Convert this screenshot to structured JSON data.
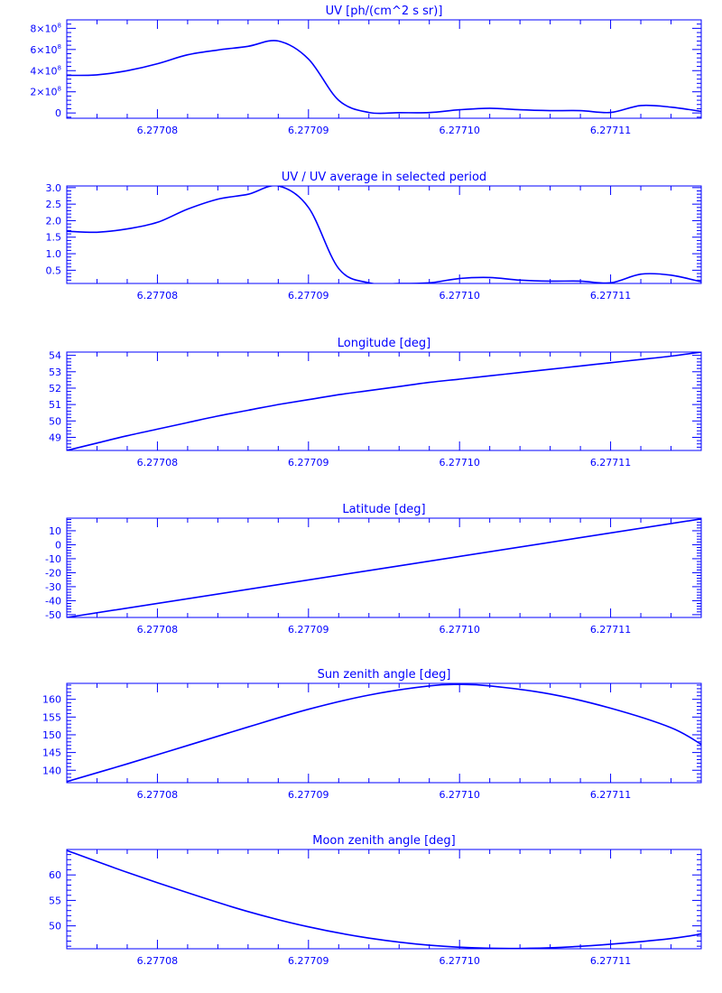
{
  "colors": {
    "foreground": "#0000ff",
    "background": "#ffffff"
  },
  "chart_data": [
    {
      "type": "line",
      "title": "UV [ph/(cm^2 s sr)]",
      "xlabel": "",
      "ylabel": "",
      "xlim": [
        6.277074,
        6.277116
      ],
      "ylim": [
        -50000000,
        880000000
      ],
      "xticks": [
        6.27708,
        6.27709,
        6.2771,
        6.27711
      ],
      "xtick_labels": [
        "6.27708",
        "6.27709",
        "6.27710",
        "6.27711"
      ],
      "yticks": [
        0,
        200000000,
        400000000,
        600000000,
        800000000
      ],
      "ytick_labels": [
        {
          "base": "0",
          "exp": ""
        },
        {
          "base": "2×10",
          "exp": "8"
        },
        {
          "base": "4×10",
          "exp": "8"
        },
        {
          "base": "6×10",
          "exp": "8"
        },
        {
          "base": "8×10",
          "exp": "8"
        }
      ],
      "y_minor": 5,
      "grid": false,
      "x": [
        6.277074,
        6.277076,
        6.277078,
        6.27708,
        6.277082,
        6.277084,
        6.277086,
        6.277088,
        6.27709,
        6.277092,
        6.277094,
        6.277096,
        6.277098,
        6.2771,
        6.277102,
        6.277104,
        6.277106,
        6.277108,
        6.27711,
        6.277112,
        6.277114,
        6.277116
      ],
      "y": [
        355000000,
        360000000,
        400000000,
        465000000,
        550000000,
        595000000,
        630000000,
        680000000,
        510000000,
        120000000,
        5000000,
        3000000,
        4000000,
        30000000,
        45000000,
        30000000,
        22000000,
        22000000,
        5000000,
        70000000,
        55000000,
        15000000
      ]
    },
    {
      "type": "line",
      "title": "UV / UV average in selected period",
      "xlabel": "",
      "ylabel": "",
      "xlim": [
        6.277074,
        6.277116
      ],
      "ylim": [
        0.1,
        3.05
      ],
      "xticks": [
        6.27708,
        6.27709,
        6.2771,
        6.27711
      ],
      "xtick_labels": [
        "6.27708",
        "6.27709",
        "6.27710",
        "6.27711"
      ],
      "yticks": [
        0.5,
        1.0,
        1.5,
        2.0,
        2.5,
        3.0
      ],
      "ytick_labels": [
        "0.5",
        "1.0",
        "1.5",
        "2.0",
        "2.5",
        "3.0"
      ],
      "y_minor": 5,
      "grid": false,
      "x": [
        6.277074,
        6.277076,
        6.277078,
        6.27708,
        6.277082,
        6.277084,
        6.277086,
        6.277088,
        6.27709,
        6.277092,
        6.277094,
        6.277096,
        6.277098,
        6.2771,
        6.277102,
        6.277104,
        6.277106,
        6.277108,
        6.27711,
        6.277112,
        6.277114,
        6.277116
      ],
      "y": [
        1.68,
        1.65,
        1.75,
        1.95,
        2.35,
        2.65,
        2.8,
        3.05,
        2.4,
        0.55,
        0.12,
        0.1,
        0.12,
        0.25,
        0.28,
        0.2,
        0.17,
        0.17,
        0.12,
        0.38,
        0.35,
        0.15
      ]
    },
    {
      "type": "line",
      "title": "Longitude [deg]",
      "xlabel": "",
      "ylabel": "",
      "xlim": [
        6.277074,
        6.277116
      ],
      "ylim": [
        48.2,
        54.2
      ],
      "xticks": [
        6.27708,
        6.27709,
        6.2771,
        6.27711
      ],
      "xtick_labels": [
        "6.27708",
        "6.27709",
        "6.27710",
        "6.27711"
      ],
      "yticks": [
        49,
        50,
        51,
        52,
        53,
        54
      ],
      "ytick_labels": [
        "49",
        "50",
        "51",
        "52",
        "53",
        "54"
      ],
      "y_minor": 5,
      "grid": false,
      "x": [
        6.277074,
        6.277076,
        6.277078,
        6.27708,
        6.277082,
        6.277084,
        6.277086,
        6.277088,
        6.27709,
        6.277092,
        6.277094,
        6.277096,
        6.277098,
        6.2771,
        6.277102,
        6.277104,
        6.277106,
        6.277108,
        6.27711,
        6.277112,
        6.277114,
        6.277116
      ],
      "y": [
        48.2,
        48.65,
        49.1,
        49.5,
        49.9,
        50.3,
        50.65,
        51.0,
        51.3,
        51.6,
        51.85,
        52.1,
        52.35,
        52.55,
        52.75,
        52.95,
        53.15,
        53.35,
        53.55,
        53.75,
        53.95,
        54.2
      ]
    },
    {
      "type": "line",
      "title": "Latitude [deg]",
      "xlabel": "",
      "ylabel": "",
      "xlim": [
        6.277074,
        6.277116
      ],
      "ylim": [
        -52,
        19
      ],
      "xticks": [
        6.27708,
        6.27709,
        6.2771,
        6.27711
      ],
      "xtick_labels": [
        "6.27708",
        "6.27709",
        "6.27710",
        "6.27711"
      ],
      "yticks": [
        -50,
        -40,
        -30,
        -20,
        -10,
        0,
        10
      ],
      "ytick_labels": [
        "-50",
        "-40",
        "-30",
        "-20",
        "-10",
        "0",
        "10"
      ],
      "y_minor": 5,
      "grid": false,
      "x": [
        6.277074,
        6.277116
      ],
      "y": [
        -52,
        18.5
      ]
    },
    {
      "type": "line",
      "title": "Sun zenith angle [deg]",
      "xlabel": "",
      "ylabel": "",
      "xlim": [
        6.277074,
        6.277116
      ],
      "ylim": [
        136.5,
        164.5
      ],
      "xticks": [
        6.27708,
        6.27709,
        6.2771,
        6.27711
      ],
      "xtick_labels": [
        "6.27708",
        "6.27709",
        "6.27710",
        "6.27711"
      ],
      "yticks": [
        140,
        145,
        150,
        155,
        160
      ],
      "ytick_labels": [
        "140",
        "145",
        "150",
        "155",
        "160"
      ],
      "y_minor": 5,
      "grid": false,
      "x": [
        6.277074,
        6.277078,
        6.277082,
        6.277086,
        6.27709,
        6.277094,
        6.277098,
        6.2771,
        6.277102,
        6.277106,
        6.27711,
        6.277114,
        6.277116
      ],
      "y": [
        136.8,
        141.8,
        147.0,
        152.2,
        157.2,
        161.2,
        163.8,
        164.2,
        163.8,
        161.5,
        157.5,
        152.0,
        147.3
      ]
    },
    {
      "type": "line",
      "title": "Moon zenith angle [deg]",
      "xlabel": "",
      "ylabel": "",
      "xlim": [
        6.277074,
        6.277116
      ],
      "ylim": [
        45.5,
        65
      ],
      "xticks": [
        6.27708,
        6.27709,
        6.2771,
        6.27711
      ],
      "xtick_labels": [
        "6.27708",
        "6.27709",
        "6.27710",
        "6.27711"
      ],
      "yticks": [
        50,
        55,
        60
      ],
      "ytick_labels": [
        "50",
        "55",
        "60"
      ],
      "y_minor": 5,
      "grid": false,
      "x": [
        6.277074,
        6.277078,
        6.277082,
        6.277086,
        6.27709,
        6.277094,
        6.277098,
        6.277102,
        6.277106,
        6.27711,
        6.277114,
        6.277116
      ],
      "y": [
        64.8,
        60.5,
        56.5,
        52.8,
        49.8,
        47.6,
        46.2,
        45.6,
        45.7,
        46.4,
        47.5,
        48.4
      ]
    }
  ]
}
